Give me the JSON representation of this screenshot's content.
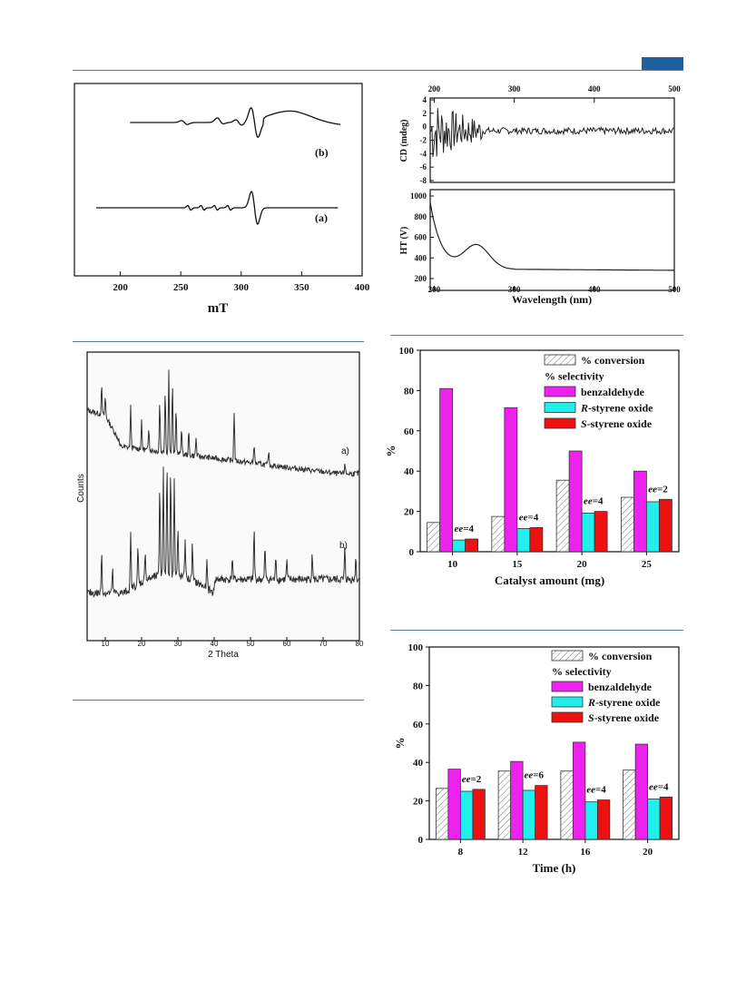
{
  "colors": {
    "header_rule": "#5b7fa6",
    "header_tab": "#1f5f9e",
    "benzaldehyde": "#ee22ee",
    "r_oxide": "#22eeee",
    "s_oxide": "#ee1111"
  },
  "epr": {
    "xlabel": "mT",
    "xticks": [
      "200",
      "250",
      "300",
      "350",
      "400"
    ],
    "labels": {
      "b": "(b)",
      "a": "(a)"
    }
  },
  "cd": {
    "top_ticks": [
      "200",
      "300",
      "400",
      "500"
    ],
    "bottom_ticks": [
      "200",
      "300",
      "400",
      "500"
    ],
    "cd_ylabel": "CD (mdeg)",
    "cd_yticks": [
      "4",
      "2",
      "0",
      "-2",
      "-4",
      "-6",
      "-8"
    ],
    "ht_ylabel": "HT (V)",
    "ht_yticks": [
      "1000",
      "800",
      "600",
      "400",
      "200"
    ],
    "xlabel": "Wavelength (nm)"
  },
  "xrd": {
    "ylabel": "Counts",
    "xlabel": "2 Theta",
    "xticks": [
      "10",
      "20",
      "30",
      "40",
      "50",
      "60",
      "70",
      "80"
    ],
    "labels": {
      "a": "a)",
      "b": "b)"
    }
  },
  "chart_data": [
    {
      "type": "bar",
      "xlabel": "Catalyst amount (mg)",
      "ylabel": "%",
      "ylim": [
        0,
        100
      ],
      "yticks": [
        "0",
        "20",
        "40",
        "60",
        "80",
        "100"
      ],
      "categories": [
        "10",
        "15",
        "20",
        "25"
      ],
      "series": [
        {
          "name": "% conversion",
          "values": [
            14.5,
            17.5,
            35.5,
            27
          ]
        },
        {
          "name": "benzaldehyde",
          "values": [
            81,
            71.5,
            50,
            40
          ]
        },
        {
          "name": "R-styrene oxide",
          "values": [
            5.8,
            11.5,
            19.2,
            24.8
          ]
        },
        {
          "name": "S-styrene oxide",
          "values": [
            6.3,
            12,
            20,
            26
          ]
        }
      ],
      "legend_heading": "% selectivity",
      "annotations": [
        {
          "category": "10",
          "text": "ee=4"
        },
        {
          "category": "15",
          "text": "ee=4"
        },
        {
          "category": "20",
          "text": "ee=4"
        },
        {
          "category": "25",
          "text": "ee=2"
        }
      ]
    },
    {
      "type": "bar",
      "xlabel": "Time (h)",
      "ylabel": "%",
      "ylim": [
        0,
        100
      ],
      "yticks": [
        "0",
        "20",
        "40",
        "60",
        "80",
        "100"
      ],
      "categories": [
        "8",
        "12",
        "16",
        "20"
      ],
      "series": [
        {
          "name": "% conversion",
          "values": [
            26.5,
            35.5,
            35.5,
            36
          ]
        },
        {
          "name": "benzaldehyde",
          "values": [
            36.5,
            40.5,
            50.5,
            49.5
          ]
        },
        {
          "name": "R-styrene oxide",
          "values": [
            25,
            25.5,
            19.5,
            21
          ]
        },
        {
          "name": "S-styrene oxide",
          "values": [
            26,
            28,
            20.5,
            22
          ]
        }
      ],
      "legend_heading": "% selectivity",
      "annotations": [
        {
          "category": "8",
          "text": "ee=2"
        },
        {
          "category": "12",
          "text": "ee=6"
        },
        {
          "category": "16",
          "text": "ee=4"
        },
        {
          "category": "20",
          "text": "ee=4"
        }
      ]
    }
  ]
}
